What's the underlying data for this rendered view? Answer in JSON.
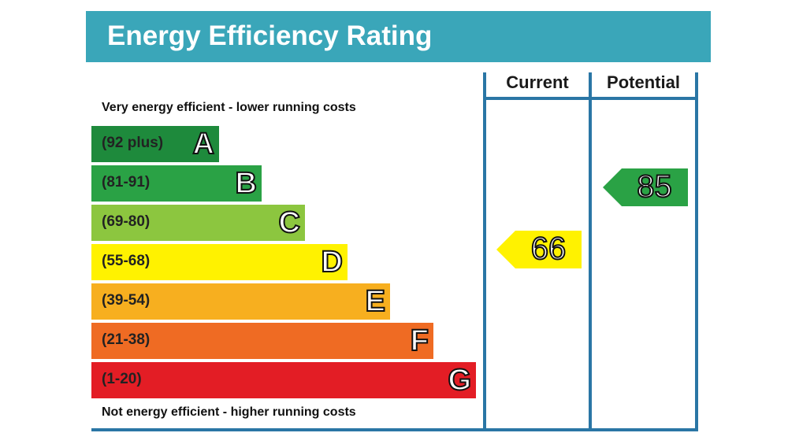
{
  "title": "Energy Efficiency Rating",
  "columns": {
    "current": "Current",
    "potential": "Potential"
  },
  "notes": {
    "top": "Very energy efficient - lower running costs",
    "bottom": "Not energy efficient - higher running costs"
  },
  "colors": {
    "header": "#3aa6b9",
    "frame": "#2a76a5"
  },
  "chart_data": {
    "type": "bar",
    "title": "Energy Efficiency Rating",
    "bands": [
      {
        "letter": "A",
        "range": "(92 plus)",
        "color": "#1e8a3c"
      },
      {
        "letter": "B",
        "range": "(81-91)",
        "color": "#2aa245"
      },
      {
        "letter": "C",
        "range": "(69-80)",
        "color": "#8cc63f"
      },
      {
        "letter": "D",
        "range": "(55-68)",
        "color": "#fff200"
      },
      {
        "letter": "E",
        "range": "(39-54)",
        "color": "#f7af1f"
      },
      {
        "letter": "F",
        "range": "(21-38)",
        "color": "#ef6b23"
      },
      {
        "letter": "G",
        "range": "(1-20)",
        "color": "#e31d25"
      }
    ],
    "current": {
      "value": 66,
      "band": "D",
      "color": "#fff200"
    },
    "potential": {
      "value": 85,
      "band": "B",
      "color": "#2aa245"
    }
  }
}
